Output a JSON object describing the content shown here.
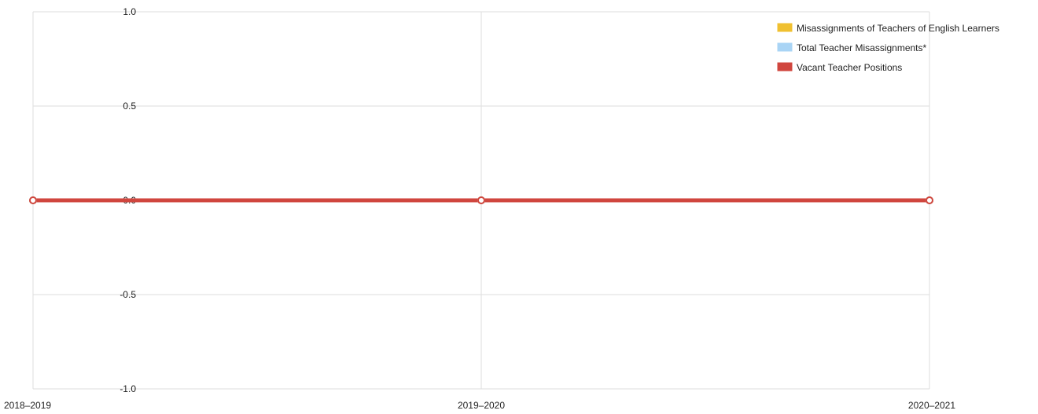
{
  "chart_data": {
    "type": "line",
    "title": "",
    "xlabel": "",
    "ylabel": "",
    "categories": [
      "2018–2019",
      "2019–2020",
      "2020–2021"
    ],
    "ylim": [
      -1.0,
      1.0
    ],
    "yticks": [
      "1.0",
      "0.5",
      "0.0",
      "-0.5",
      "-1.0"
    ],
    "grid": true,
    "legend_position": "top-right",
    "series": [
      {
        "name": "Misassignments of Teachers of English Learners",
        "color": "#f0c030",
        "values": [
          0,
          0,
          0
        ]
      },
      {
        "name": "Total Teacher Misassignments*",
        "color": "#a9d4f5",
        "values": [
          0,
          0,
          0
        ]
      },
      {
        "name": "Vacant Teacher Positions",
        "color": "#d0463e",
        "values": [
          0,
          0,
          0
        ]
      }
    ]
  }
}
